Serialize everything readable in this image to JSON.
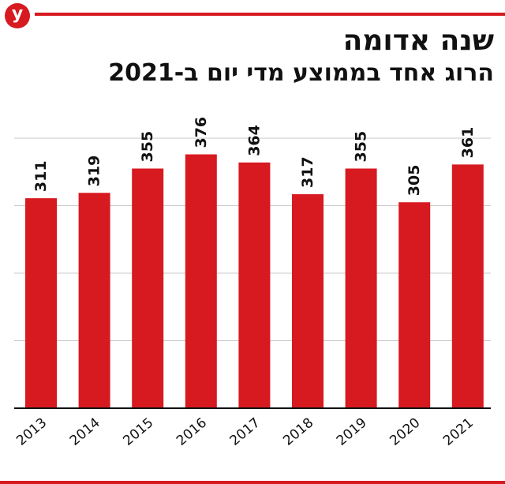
{
  "header": {
    "logo_letter": "y",
    "title": "שנה אדומה",
    "subtitle": "הרוג אחד בממוצע מדי יום ב-2021"
  },
  "colors": {
    "accent": "#d71920",
    "bar": "#d71920",
    "grid": "#c8c8c8",
    "axis": "#111111",
    "text": "#111111"
  },
  "chart_data": {
    "type": "bar",
    "categories": [
      "2013",
      "2014",
      "2015",
      "2016",
      "2017",
      "2018",
      "2019",
      "2020",
      "2021"
    ],
    "values": [
      311,
      319,
      355,
      376,
      364,
      317,
      355,
      305,
      361
    ],
    "title": "שנה אדומה",
    "subtitle": "הרוג אחד בממוצע מדי יום ב-2021",
    "xlabel": "",
    "ylabel": "",
    "ylim": [
      0,
      400
    ],
    "gridlines": [
      100,
      200,
      300,
      400
    ],
    "grid": true,
    "legend": "none"
  }
}
